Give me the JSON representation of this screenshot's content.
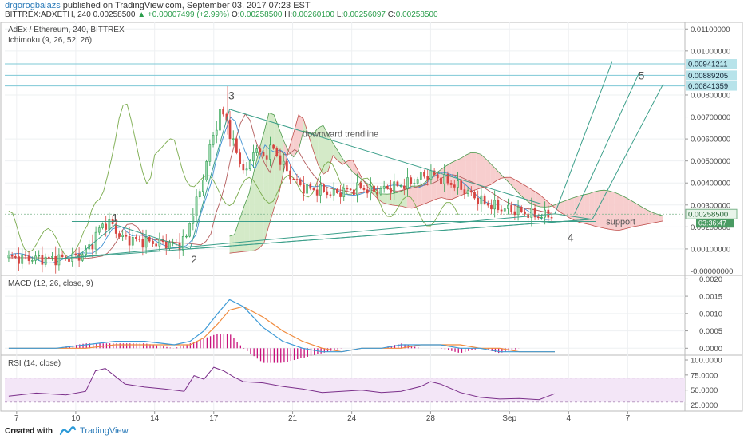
{
  "header": {
    "author": "drgorogbalazs",
    "published": "published on TradingView.com, September 03, 2017 07:23 EST",
    "symbol": "BITTREX:ADXETH, 240",
    "last": "0.00258500",
    "change_arrow": "▲",
    "change": "+0.00007499 (+2.99%)",
    "o_label": "O:",
    "o_val": "0.00258500",
    "h_label": "H:",
    "h_val": "0.00260100",
    "l_label": "L:",
    "l_val": "0.00256097",
    "c_label": "C:",
    "c_val": "0.00258500"
  },
  "footer": {
    "created": "Created with",
    "brand": "TradingView"
  },
  "colors": {
    "up": "#2a9d4b",
    "down": "#d64541",
    "macd": "#3d9ad6",
    "signal": "#f08a3c",
    "hist": "#c8127b",
    "rsi": "#7b2f8a",
    "rsi_band": "#f3e6f7",
    "ichimoku_lead": "#7aab4d",
    "cloud_red": "#f6c9c9",
    "cloud_green": "#cfe8c2",
    "trend": "#3b9f8a",
    "hline": "#7ec8d6"
  },
  "chart_data": [
    {
      "type": "candlestick",
      "title": "AdEx / Ethereum, 240, BITTREX",
      "indicator": "Ichimoku (9, 26, 52, 26)",
      "x_ticks": [
        "7",
        "10",
        "14",
        "17",
        "21",
        "24",
        "28",
        "Sep",
        "4",
        "7"
      ],
      "y_ticks": [
        "0.01100000",
        "0.01000000",
        "0.00900000",
        "0.00800000",
        "0.00700000",
        "0.00600000",
        "0.00500000",
        "0.00400000",
        "0.00300000",
        "0.00200000",
        "0.00100000",
        "-0.00000000"
      ],
      "ylim": [
        -0.0002,
        0.0113
      ],
      "price_points": [
        {
          "d": 6.6,
          "v": 0.0006
        },
        {
          "d": 7.5,
          "v": 0.00058
        },
        {
          "d": 8.5,
          "v": 0.00055
        },
        {
          "d": 9.5,
          "v": 0.00058
        },
        {
          "d": 10.3,
          "v": 0.0007
        },
        {
          "d": 10.8,
          "v": 0.0012
        },
        {
          "d": 11.3,
          "v": 0.0021
        },
        {
          "d": 11.8,
          "v": 0.00215
        },
        {
          "d": 12.3,
          "v": 0.0015
        },
        {
          "d": 13.0,
          "v": 0.0014
        },
        {
          "d": 13.8,
          "v": 0.0013
        },
        {
          "d": 14.5,
          "v": 0.00125
        },
        {
          "d": 15.2,
          "v": 0.00118
        },
        {
          "d": 15.6,
          "v": 0.0015
        },
        {
          "d": 15.9,
          "v": 0.0026
        },
        {
          "d": 16.3,
          "v": 0.0036
        },
        {
          "d": 16.7,
          "v": 0.0053
        },
        {
          "d": 17.0,
          "v": 0.0062
        },
        {
          "d": 17.3,
          "v": 0.0072
        },
        {
          "d": 17.6,
          "v": 0.007
        },
        {
          "d": 17.9,
          "v": 0.006
        },
        {
          "d": 18.3,
          "v": 0.005
        },
        {
          "d": 18.7,
          "v": 0.0044
        },
        {
          "d": 19.0,
          "v": 0.0056
        },
        {
          "d": 19.5,
          "v": 0.0052
        },
        {
          "d": 20.0,
          "v": 0.0056
        },
        {
          "d": 20.5,
          "v": 0.0048
        },
        {
          "d": 21.0,
          "v": 0.0042
        },
        {
          "d": 21.5,
          "v": 0.0038
        },
        {
          "d": 22.0,
          "v": 0.0037
        },
        {
          "d": 22.5,
          "v": 0.00365
        },
        {
          "d": 23.0,
          "v": 0.0035
        },
        {
          "d": 23.5,
          "v": 0.0036
        },
        {
          "d": 24.0,
          "v": 0.0037
        },
        {
          "d": 24.5,
          "v": 0.0038
        },
        {
          "d": 25.0,
          "v": 0.0036
        },
        {
          "d": 25.5,
          "v": 0.0037
        },
        {
          "d": 26.0,
          "v": 0.0038
        },
        {
          "d": 26.5,
          "v": 0.0039
        },
        {
          "d": 27.0,
          "v": 0.004
        },
        {
          "d": 27.5,
          "v": 0.0043
        },
        {
          "d": 28.0,
          "v": 0.0044
        },
        {
          "d": 28.5,
          "v": 0.0042
        },
        {
          "d": 29.0,
          "v": 0.004
        },
        {
          "d": 29.5,
          "v": 0.0038
        },
        {
          "d": 30.0,
          "v": 0.0035
        },
        {
          "d": 30.5,
          "v": 0.0032
        },
        {
          "d": 31.0,
          "v": 0.003
        },
        {
          "d": 31.5,
          "v": 0.00285
        },
        {
          "d": 32.0,
          "v": 0.0028
        },
        {
          "d": 32.5,
          "v": 0.0027
        },
        {
          "d": 33.0,
          "v": 0.0026
        },
        {
          "d": 33.5,
          "v": 0.0025
        },
        {
          "d": 34.0,
          "v": 0.00255
        },
        {
          "d": 34.3,
          "v": 0.00258
        }
      ],
      "horizontal_levels": [
        {
          "label": "0.00941211",
          "value": 0.00941211
        },
        {
          "label": "0.00889205",
          "value": 0.00889205
        },
        {
          "label": "0.00841359",
          "value": 0.00841359
        }
      ],
      "current_price_label": "0.00258500",
      "countdown_label": "03:36:47",
      "annotations": {
        "trendline": "downward trendline",
        "support": "support",
        "wave_1": "1",
        "wave_2": "2",
        "wave_3": "3",
        "wave_4": "4",
        "wave_5": "5"
      }
    },
    {
      "type": "line",
      "title": "MACD (12, 26, close, 9)",
      "y_ticks": [
        "0.0020",
        "0.0015",
        "0.0010",
        "0.0005",
        "0.0000"
      ],
      "ylim": [
        -0.0002,
        0.0021
      ],
      "series": [
        {
          "name": "macd",
          "x": [
            6.6,
            9,
            10.5,
            12,
            13.5,
            15,
            15.8,
            16.5,
            17.2,
            17.8,
            18.5,
            19.5,
            20.5,
            21.5,
            22.5,
            23.5,
            24.5,
            25.5,
            26.5,
            27.5,
            28.5,
            29.5,
            30.5,
            31.5,
            32.5,
            33.5,
            34.3
          ],
          "values": [
            0.0,
            0.0,
            0.0001,
            0.0002,
            0.0002,
            0.0001,
            0.0002,
            0.0005,
            0.001,
            0.0014,
            0.0012,
            0.0006,
            0.0002,
            0.0,
            -0.0001,
            -0.0001,
            0.0,
            0.0,
            0.0001,
            0.0001,
            0.0001,
            0.0,
            0.0,
            -0.0001,
            -0.0001,
            -0.0001,
            -0.0001
          ]
        },
        {
          "name": "signal",
          "x": [
            6.6,
            9,
            10.5,
            12,
            13.5,
            15,
            15.8,
            16.5,
            17.2,
            17.8,
            18.5,
            19.5,
            20.5,
            21.5,
            22.5,
            23.5,
            24.5,
            25.5,
            26.5,
            27.5,
            28.5,
            29.5,
            30.5,
            31.5,
            32.5,
            33.5,
            34.3
          ],
          "values": [
            0.0,
            0.0,
            0.0,
            0.0001,
            0.0001,
            0.0001,
            0.0001,
            0.0003,
            0.0007,
            0.0011,
            0.0012,
            0.0009,
            0.0005,
            0.0002,
            0.0,
            -0.0001,
            0.0,
            0.0,
            0.0,
            0.0001,
            0.0001,
            0.0001,
            0.0,
            0.0,
            -0.0001,
            -0.0001,
            -0.0001
          ]
        }
      ]
    },
    {
      "type": "line",
      "title": "RSI (14, close)",
      "y_ticks": [
        "100.0000",
        "75.0000",
        "50.0000",
        "25.0000"
      ],
      "ylim": [
        15,
        108
      ],
      "band": [
        30,
        70
      ],
      "series": [
        {
          "name": "rsi",
          "x": [
            6.6,
            8,
            9.5,
            10.5,
            11,
            11.5,
            12.5,
            13.5,
            14.5,
            15.5,
            16,
            16.5,
            17,
            17.5,
            18,
            18.5,
            19.5,
            20.5,
            21.5,
            22.5,
            23.5,
            24.5,
            25.5,
            26.5,
            27.5,
            28,
            28.5,
            29.5,
            30.5,
            31.5,
            32.5,
            33.5,
            34.3
          ],
          "values": [
            40,
            45,
            42,
            48,
            82,
            86,
            60,
            55,
            52,
            48,
            74,
            68,
            88,
            82,
            72,
            64,
            62,
            56,
            52,
            46,
            48,
            50,
            46,
            48,
            56,
            64,
            60,
            46,
            38,
            35,
            36,
            34,
            44
          ]
        }
      ]
    }
  ]
}
